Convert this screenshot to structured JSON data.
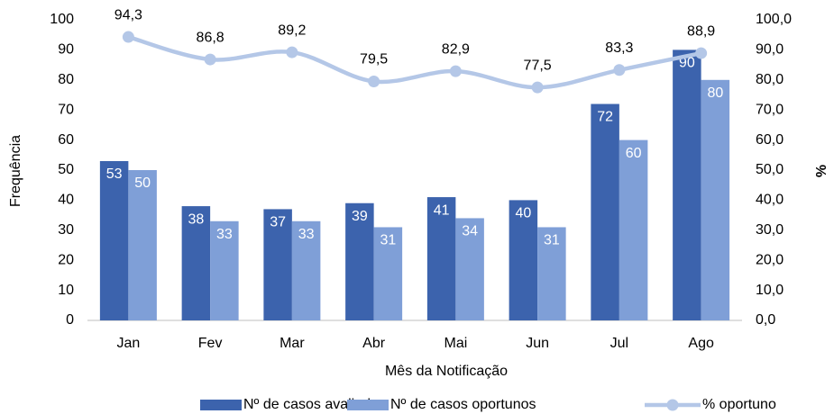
{
  "chart_data": {
    "type": "bar_line",
    "categories": [
      "Jan",
      "Fev",
      "Mar",
      "Abr",
      "Mai",
      "Jun",
      "Jul",
      "Ago"
    ],
    "series": [
      {
        "name": "Nº de casos avaliados",
        "type": "bar",
        "color": "#3c63ad",
        "values": [
          53,
          38,
          37,
          39,
          41,
          40,
          72,
          90
        ]
      },
      {
        "name": "Nº de casos oportunos",
        "type": "bar",
        "color": "#7f9fd7",
        "values": [
          50,
          33,
          33,
          31,
          34,
          31,
          60,
          80
        ]
      },
      {
        "name": "% oportuno",
        "type": "line",
        "axis": "y2",
        "color": "#b4c7e7",
        "values": [
          94.3,
          86.8,
          89.2,
          79.5,
          82.9,
          77.5,
          83.3,
          88.9
        ],
        "value_labels": [
          "94,3",
          "86,8",
          "89,2",
          "79,5",
          "82,9",
          "77,5",
          "83,3",
          "88,9"
        ]
      }
    ],
    "x_label": "Mês da Notificação",
    "y_label": "Frequência",
    "y2_label": "%",
    "ylim": [
      0,
      100
    ],
    "yticks": [
      0,
      10,
      20,
      30,
      40,
      50,
      60,
      70,
      80,
      90,
      100
    ],
    "y2lim": [
      0,
      100
    ],
    "y2ticks": [
      {
        "value": 0,
        "label": "0,0"
      },
      {
        "value": 10,
        "label": "10,0"
      },
      {
        "value": 20,
        "label": "20,0"
      },
      {
        "value": 30,
        "label": "30,0"
      },
      {
        "value": 40,
        "label": "40,0"
      },
      {
        "value": 50,
        "label": "50,0"
      },
      {
        "value": 60,
        "label": "60,0"
      },
      {
        "value": 70,
        "label": "70,0"
      },
      {
        "value": 80,
        "label": "80,0"
      },
      {
        "value": 90,
        "label": "90,0"
      },
      {
        "value": 100,
        "label": "100,0"
      }
    ],
    "grid": false,
    "legend": "bottom"
  }
}
